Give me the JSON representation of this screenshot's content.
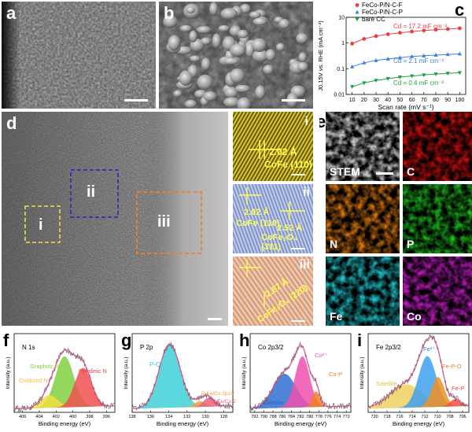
{
  "panels": {
    "a": {
      "label": "a"
    },
    "b": {
      "label": "b"
    },
    "c": {
      "label": "c"
    },
    "d": {
      "label": "d",
      "regions": [
        "i",
        "ii",
        "iii"
      ]
    },
    "e": {
      "label": "e"
    },
    "f": {
      "label": "f"
    },
    "g": {
      "label": "g"
    },
    "h": {
      "label": "h"
    },
    "i": {
      "label": "i"
    }
  },
  "insets": {
    "i": {
      "roman": "i",
      "lines": [
        "2.02 Å",
        "CoFe (110)"
      ]
    },
    "ii": {
      "roman": "ii",
      "lines": [
        "2.02 Å",
        "CoFe (110)",
        "2.52 Å",
        "CoFe₂O₄ (311)"
      ]
    },
    "iii": {
      "roman": "iii",
      "lines": [
        "2.87 Å",
        "CoFe₂O₄ (220)"
      ]
    }
  },
  "eds_maps": [
    {
      "label": "STEM",
      "color": "#d8d8d8"
    },
    {
      "label": "C",
      "color": "#e01010"
    },
    {
      "label": "N",
      "color": "#e07a10"
    },
    {
      "label": "P",
      "color": "#20c020"
    },
    {
      "label": "Fe",
      "color": "#20c8d0"
    },
    {
      "label": "Co",
      "color": "#d020d0"
    }
  ],
  "chart_data": [
    {
      "id": "c",
      "type": "scatter",
      "xlabel": "Scan rate (mV s⁻¹)",
      "ylabel": "J0.15V vs. RHE (mA cm⁻²)",
      "xlim": [
        5,
        105
      ],
      "ylim": [
        0.01,
        10
      ],
      "yscale": "log",
      "xticks": [
        10,
        20,
        30,
        40,
        50,
        60,
        70,
        80,
        90,
        100
      ],
      "yticks": [
        {
          "value": 10,
          "label": "10"
        },
        {
          "value": 1,
          "label": "1"
        },
        {
          "value": 0.1,
          "label": "0.1"
        },
        {
          "value": 0.01,
          "label": "0.01"
        }
      ],
      "legend": "top-left",
      "series": [
        {
          "name": "FeCo-P/N-C-F",
          "color": "#e84040",
          "marker": "circle",
          "annotation": "Cd = 17.2 mF cm⁻²",
          "x": [
            10,
            20,
            30,
            40,
            50,
            60,
            70,
            80,
            90,
            100
          ],
          "y": [
            0.95,
            1.45,
            1.85,
            2.2,
            2.5,
            2.8,
            3.05,
            3.3,
            3.5,
            3.75
          ]
        },
        {
          "name": "FeCo-P/N-C-P",
          "color": "#3a7fe0",
          "marker": "triangle",
          "annotation": "Cd = 2.1 mF cm⁻²",
          "x": [
            10,
            20,
            30,
            40,
            50,
            60,
            70,
            80,
            90,
            100
          ],
          "y": [
            0.12,
            0.17,
            0.21,
            0.24,
            0.27,
            0.3,
            0.32,
            0.34,
            0.36,
            0.38
          ]
        },
        {
          "name": "bare CC",
          "color": "#20a040",
          "marker": "triangle-down",
          "annotation": "Cd = 0.4 mF cm⁻²",
          "x": [
            10,
            20,
            30,
            40,
            50,
            60,
            70,
            80,
            90,
            100
          ],
          "y": [
            0.02,
            0.028,
            0.035,
            0.041,
            0.047,
            0.052,
            0.057,
            0.062,
            0.066,
            0.07
          ]
        }
      ]
    },
    {
      "id": "f",
      "type": "line",
      "title": "N 1s",
      "xlabel": "Binding energy (eV)",
      "ylabel": "Intensity (a.u.)",
      "xlim": [
        407,
        395
      ],
      "xticks": [
        406,
        404,
        402,
        400,
        398,
        396
      ],
      "peaks": [
        {
          "name": "Graphitic N",
          "center": 401.0,
          "height": 0.72,
          "width": 1.1,
          "color": "#80d040",
          "label_color": "#80d040"
        },
        {
          "name": "Oxidized N",
          "center": 402.8,
          "height": 0.18,
          "width": 1.0,
          "color": "#f0e040",
          "label_color": "#f0c040"
        },
        {
          "name": "Pyridinic N",
          "center": 398.8,
          "height": 0.55,
          "width": 1.0,
          "color": "#f05050",
          "label_color": "#f04040"
        }
      ]
    },
    {
      "id": "g",
      "type": "line",
      "title": "P 2p",
      "xlabel": "Binding energy (eV)",
      "ylabel": "Intensity (a.u.)",
      "xlim": [
        138,
        127
      ],
      "xticks": [
        138,
        136,
        134,
        132,
        130,
        128
      ],
      "peaks": [
        {
          "name": "P-O",
          "center": 133.9,
          "height": 0.9,
          "width": 1.15,
          "color": "#40d0d8",
          "label_color": "#40c0d0"
        },
        {
          "name": "P-Fe/Co 2p1/2",
          "center": 130.6,
          "height": 0.08,
          "width": 0.6,
          "color": "#f0a040",
          "label_color": "#f0a040"
        },
        {
          "name": "P-Fe/Co 2p3/2",
          "center": 129.6,
          "height": 0.13,
          "width": 0.6,
          "color": "#f06080",
          "label_color": "#f06080"
        }
      ]
    },
    {
      "id": "h",
      "type": "line",
      "title": "Co 2p3/2",
      "xlabel": "Binding energy (eV)",
      "ylabel": "Intensity (a.u.)",
      "xlim": [
        793,
        771
      ],
      "xticks": [
        792,
        790,
        788,
        786,
        784,
        782,
        780,
        778,
        776,
        774,
        772
      ],
      "peaks": [
        {
          "name": "Satellite",
          "center": 785.5,
          "height": 0.48,
          "width": 2.5,
          "color": "#3070d0",
          "label_color": "#3060c0"
        },
        {
          "name": "Co²⁺",
          "center": 781.6,
          "height": 0.72,
          "width": 1.6,
          "color": "#f050b0",
          "label_color": "#f050b0"
        },
        {
          "name": "Co-P",
          "center": 778.6,
          "height": 0.22,
          "width": 0.8,
          "color": "#f08020",
          "label_color": "#f08020"
        }
      ]
    },
    {
      "id": "i",
      "type": "line",
      "title": "Fe 2p3/2",
      "xlabel": "Binding energy (eV)",
      "ylabel": "Intensity (a.u.)",
      "xlim": [
        721,
        705
      ],
      "xticks": [
        720,
        718,
        716,
        714,
        712,
        710,
        708,
        706
      ],
      "peaks": [
        {
          "name": "Satellite",
          "center": 715.0,
          "height": 0.33,
          "width": 2.6,
          "color": "#f0d060",
          "label_color": "#e0c040"
        },
        {
          "name": "Fe³⁺",
          "center": 711.6,
          "height": 0.72,
          "width": 1.4,
          "color": "#40a0f0",
          "label_color": "#3080e0"
        },
        {
          "name": "Fe-P-O",
          "center": 709.9,
          "height": 0.42,
          "width": 1.0,
          "color": "#f09020",
          "label_color": "#f08020"
        },
        {
          "name": "Fe-P",
          "center": 707.2,
          "height": 0.1,
          "width": 0.8,
          "color": "#f05040",
          "label_color": "#f04040"
        }
      ]
    }
  ]
}
